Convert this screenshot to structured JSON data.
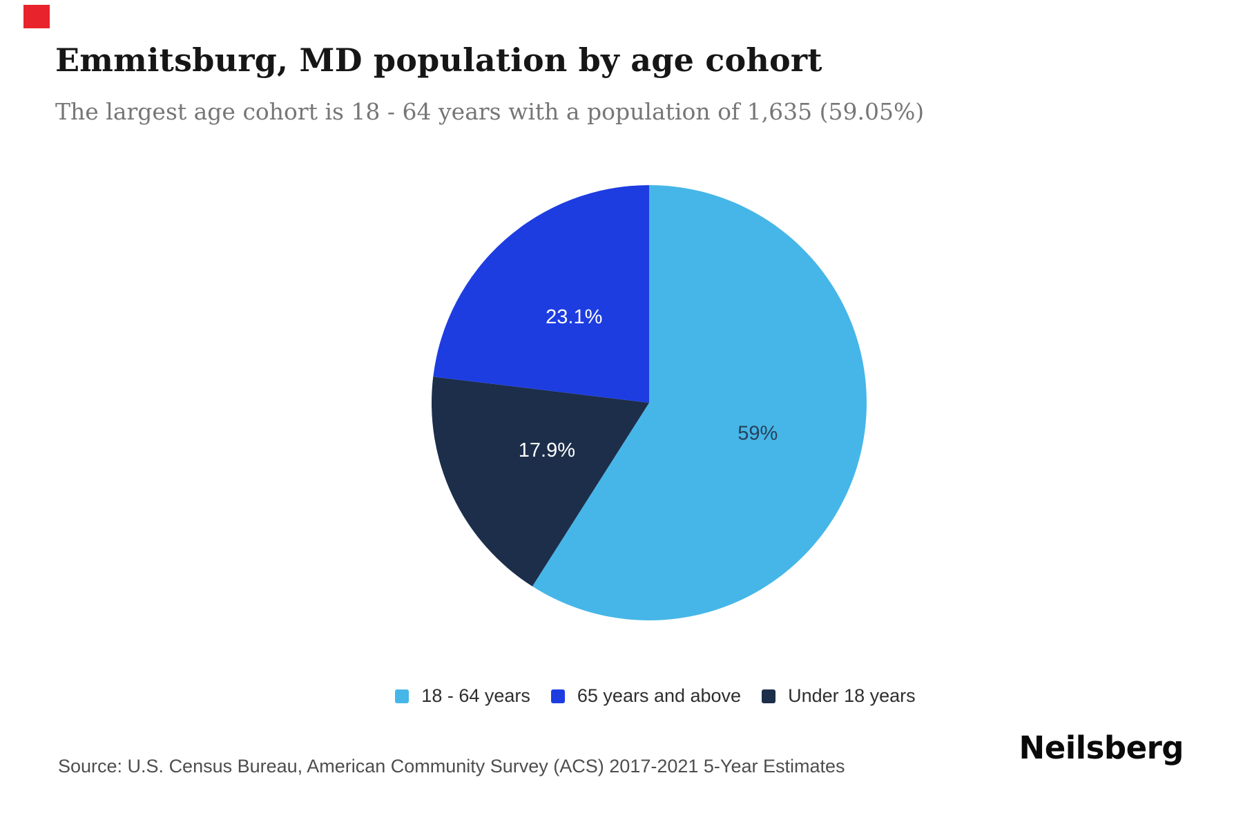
{
  "page": {
    "background": "#ffffff"
  },
  "corner_marker": {
    "color": "#e8232b"
  },
  "header": {
    "title": "Emmitsburg, MD population by age cohort",
    "subtitle": "The largest age cohort is 18 - 64 years with a population of 1,635 (59.05%)"
  },
  "chart_data": {
    "type": "pie",
    "title": "Emmitsburg, MD population by age cohort",
    "start_angle_deg": 0,
    "direction": "clockwise",
    "largest_cohort": {
      "label": "18 - 64 years",
      "population": "1,635",
      "pct": 59.05
    },
    "slices": [
      {
        "label": "18 - 64 years",
        "pct": 59.05,
        "display": "59%",
        "color": "#46b6e8",
        "label_color": "#27415a"
      },
      {
        "label": "Under 18 years",
        "pct": 17.9,
        "display": "17.9%",
        "color": "#1c2e4a",
        "label_color": "#ffffff"
      },
      {
        "label": "65 years and above",
        "pct": 23.1,
        "display": "23.1%",
        "color": "#1d3de1",
        "label_color": "#ffffff"
      }
    ],
    "legend": [
      {
        "label": "18 - 64 years",
        "color": "#46b6e8"
      },
      {
        "label": "65 years and above",
        "color": "#1d3de1"
      },
      {
        "label": "Under 18 years",
        "color": "#1c2e4a"
      }
    ],
    "legend_position": "bottom"
  },
  "footer": {
    "source": "Source: U.S. Census Bureau, American Community Survey (ACS) 2017-2021 5-Year Estimates",
    "brand": "Neilsberg"
  }
}
